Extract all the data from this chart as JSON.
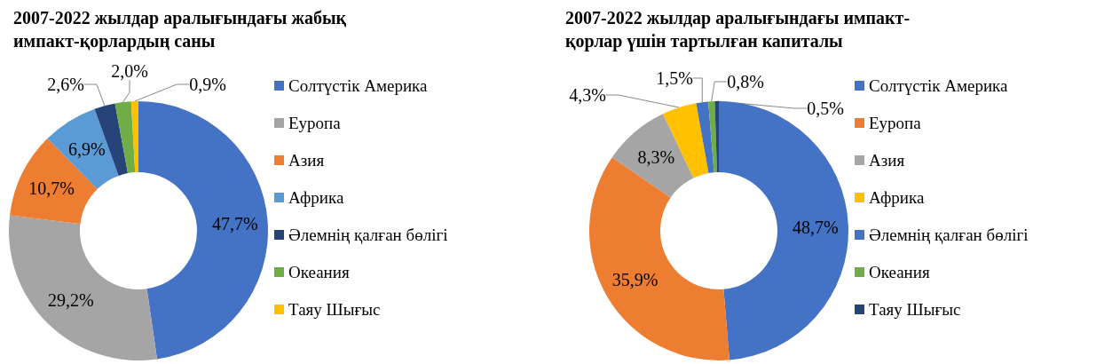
{
  "chart_data": [
    {
      "type": "donut",
      "title": "2007-2022 жылдар аралығындағы жабық\nимпакт-қорлардың саны",
      "categories": [
        "Солтүстік Америка",
        "Еуропа",
        "Азия",
        "Африка",
        "Әлемнің қалған бөлігі",
        "Океания",
        "Таяу Шығыс"
      ],
      "values": [
        47.7,
        29.2,
        10.7,
        6.9,
        2.6,
        2.0,
        0.9
      ],
      "colors": [
        "#4472c4",
        "#a5a5a5",
        "#ed7d31",
        "#5b9bd5",
        "#264478",
        "#70ad47",
        "#ffc000"
      ],
      "value_labels": [
        "47,7%",
        "29,2%",
        "10,7%",
        "6,9%",
        "2,6%",
        "2,0%",
        "0,9%"
      ],
      "legend": "right"
    },
    {
      "type": "donut",
      "title": "2007-2022 жылдар аралығындағы импакт-\nқорлар үшін тартылған капиталы",
      "categories": [
        "Солтүстік Америка",
        "Еуропа",
        "Азия",
        "Африка",
        "Әлемнің қалған бөлігі",
        "Океания",
        "Таяу Шығыс"
      ],
      "values": [
        48.7,
        35.9,
        8.3,
        4.3,
        1.5,
        0.8,
        0.5
      ],
      "colors": [
        "#4472c4",
        "#ed7d31",
        "#a5a5a5",
        "#ffc000",
        "#4472c4",
        "#70ad47",
        "#264478"
      ],
      "value_labels": [
        "48,7%",
        "35,9%",
        "8,3%",
        "4,3%",
        "1,5%",
        "0,8%",
        "0,5%"
      ],
      "legend": "right"
    }
  ]
}
